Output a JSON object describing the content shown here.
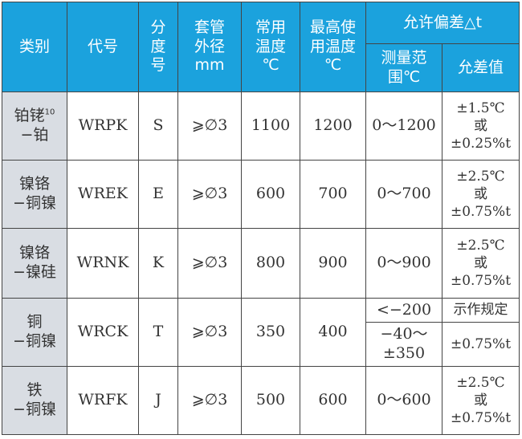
{
  "header": {
    "category": "类别",
    "code": "代号",
    "graduation": [
      "分",
      "度",
      "号"
    ],
    "sheath": [
      "套管",
      "外径",
      "mm"
    ],
    "normal_temp": [
      "常用",
      "温度",
      "℃"
    ],
    "max_temp": [
      "最高使",
      "用温度",
      "℃"
    ],
    "tolerance_group": "允许偏差△t",
    "range": [
      "测量范",
      "围℃"
    ],
    "tolerance": "允差值"
  },
  "colors": {
    "header_bg": "#1ba2dd",
    "category_bg": "#d9dde3"
  },
  "rows": [
    {
      "category": [
        "铂铑",
        "10",
        "−铂"
      ],
      "code": "WRPK",
      "graduation": "S",
      "sheath": "⩾∅3",
      "normal": "1100",
      "max": "1200",
      "range": "0～1200",
      "tolerance": [
        "±1.5℃",
        "或",
        "±0.25%t"
      ]
    },
    {
      "category": [
        "镍铬",
        "",
        "−铜镍"
      ],
      "code": "WREK",
      "graduation": "E",
      "sheath": "⩾∅3",
      "normal": "600",
      "max": "700",
      "range": "0～700",
      "tolerance": [
        "±2.5℃",
        "或",
        "±0.75%t"
      ]
    },
    {
      "category": [
        "镍铬",
        "",
        "−镍硅"
      ],
      "code": "WRNK",
      "graduation": "K",
      "sheath": "⩾∅3",
      "normal": "800",
      "max": "900",
      "range": "0～900",
      "tolerance": [
        "±2.5℃",
        "或",
        "±0.75%t"
      ]
    },
    {
      "category": [
        "铜",
        "",
        "−铜镍"
      ],
      "code": "WRCK",
      "graduation": "T",
      "sheath": "⩾∅3",
      "normal": "350",
      "max": "400",
      "range": "<−200",
      "tolerance": [
        "示作规定"
      ],
      "range2": [
        "−40～",
        "±350"
      ],
      "tolerance2": "±0.75%t"
    },
    {
      "category": [
        "铁",
        "",
        "−铜镍"
      ],
      "code": "WRFK",
      "graduation": "J",
      "sheath": "⩾∅3",
      "normal": "500",
      "max": "600",
      "range": "0～600",
      "tolerance": [
        "±2.5℃",
        "或",
        "±0.75%t"
      ]
    }
  ]
}
